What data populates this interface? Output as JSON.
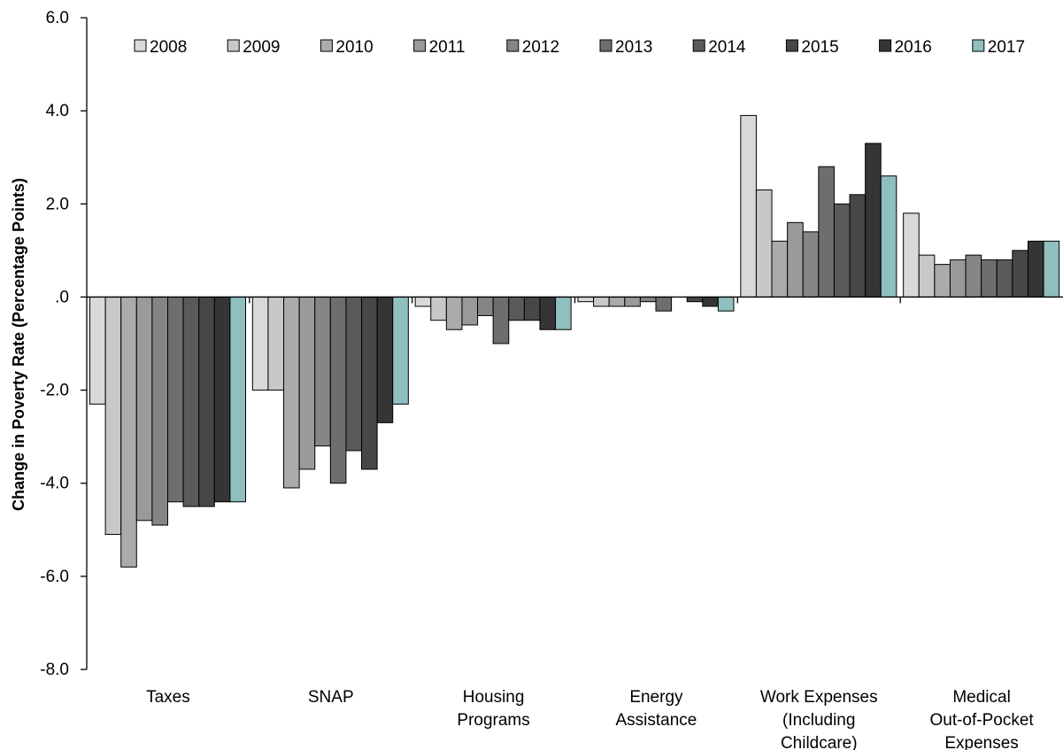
{
  "chart_data": {
    "type": "bar",
    "title": "",
    "xlabel": "",
    "ylabel": "Change in Poverty Rate (Percentage Points)",
    "ylim": [
      -8,
      6
    ],
    "yticks": [
      "6.0",
      "4.0",
      "2.0",
      ".0",
      "-2.0",
      "-4.0",
      "-6.0",
      "-8.0"
    ],
    "grid": false,
    "legend_position": "top",
    "categories": [
      [
        "Taxes"
      ],
      [
        "SNAP"
      ],
      [
        "Housing",
        "Programs"
      ],
      [
        "Energy",
        "Assistance"
      ],
      [
        "Work Expenses",
        "(Including",
        "Childcare)"
      ],
      [
        "Medical",
        "Out-of-Pocket",
        "Expenses"
      ]
    ],
    "series": [
      {
        "name": "2008",
        "color": "#d9d9d9",
        "values": [
          -2.3,
          -2.0,
          -0.2,
          -0.1,
          3.9,
          1.8
        ]
      },
      {
        "name": "2009",
        "color": "#c8c8c8",
        "values": [
          -5.1,
          -2.0,
          -0.5,
          -0.2,
          2.3,
          0.9
        ]
      },
      {
        "name": "2010",
        "color": "#ababab",
        "values": [
          -5.8,
          -4.1,
          -0.7,
          -0.2,
          1.2,
          0.7
        ]
      },
      {
        "name": "2011",
        "color": "#9a9a9a",
        "values": [
          -4.8,
          -3.7,
          -0.6,
          -0.2,
          1.6,
          0.8
        ]
      },
      {
        "name": "2012",
        "color": "#858585",
        "values": [
          -4.9,
          -3.2,
          -0.4,
          -0.1,
          1.4,
          0.9
        ]
      },
      {
        "name": "2013",
        "color": "#6e6e6e",
        "values": [
          -4.4,
          -4.0,
          -1.0,
          -0.3,
          2.8,
          0.8
        ]
      },
      {
        "name": "2014",
        "color": "#5a5a5a",
        "values": [
          -4.5,
          -3.3,
          -0.5,
          0.0,
          2.0,
          0.8
        ]
      },
      {
        "name": "2015",
        "color": "#474747",
        "values": [
          -4.5,
          -3.7,
          -0.5,
          -0.1,
          2.2,
          1.0
        ]
      },
      {
        "name": "2016",
        "color": "#353535",
        "values": [
          -4.4,
          -2.7,
          -0.7,
          -0.2,
          3.3,
          1.2
        ]
      },
      {
        "name": "2017",
        "color": "#8fbfbf",
        "values": [
          -4.4,
          -2.3,
          -0.7,
          -0.3,
          2.6,
          1.2
        ]
      }
    ]
  }
}
